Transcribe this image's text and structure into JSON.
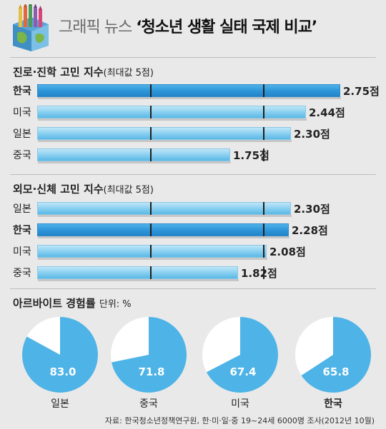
{
  "header": {
    "title_prefix": "그래픽 뉴스",
    "title_main": "‘청소년 생활 실태 국제 비교’",
    "logo_icon": "crayon-globe-logo-icon"
  },
  "chart_data": [
    {
      "type": "bar",
      "title": "진로·진학 고민 지수",
      "note": "(최대값 5점)",
      "unit": "점",
      "xlim": [
        0,
        2.75
      ],
      "categories": [
        "한국",
        "미국",
        "일본",
        "중국"
      ],
      "values": [
        2.75,
        2.44,
        2.3,
        1.75
      ],
      "value_labels": [
        "2.75점",
        "2.44점",
        "2.30점",
        "1.75점"
      ],
      "highlight": "한국"
    },
    {
      "type": "bar",
      "title": "외모·신체 고민 지수",
      "note": "(최대값 5점)",
      "unit": "점",
      "xlim": [
        0,
        2.75
      ],
      "categories": [
        "일본",
        "한국",
        "미국",
        "중국"
      ],
      "values": [
        2.3,
        2.28,
        2.08,
        1.82
      ],
      "value_labels": [
        "2.30점",
        "2.28점",
        "2.08점",
        "1.82점"
      ],
      "highlight": "한국"
    },
    {
      "type": "pie",
      "title": "아르바이트 경험률",
      "unit_note": "단위: %",
      "categories": [
        "일본",
        "중국",
        "미국",
        "한국"
      ],
      "values": [
        83.0,
        71.8,
        67.4,
        65.8
      ],
      "value_labels": [
        "83.0",
        "71.8",
        "67.4",
        "65.8"
      ],
      "highlight": "한국",
      "colors": {
        "slice": "#4eb3e6",
        "rest": "#ffffff"
      }
    }
  ],
  "source": "자료: 한국청소년정책연구원, 한·미·일·중 19~24세 6000명 조사(2012년 10월)"
}
